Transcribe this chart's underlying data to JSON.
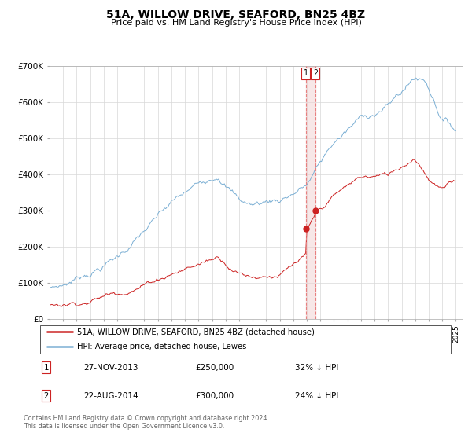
{
  "title": "51A, WILLOW DRIVE, SEAFORD, BN25 4BZ",
  "subtitle": "Price paid vs. HM Land Registry's House Price Index (HPI)",
  "ylim": [
    0,
    700000
  ],
  "yticks": [
    0,
    100000,
    200000,
    300000,
    400000,
    500000,
    600000,
    700000
  ],
  "ytick_labels": [
    "£0",
    "£100K",
    "£200K",
    "£300K",
    "£400K",
    "£500K",
    "£600K",
    "£700K"
  ],
  "xlim_start": 1995.0,
  "xlim_end": 2025.5,
  "sale1_date": 2013.917,
  "sale1_price": 250000,
  "sale1_label": "27-NOV-2013",
  "sale1_amount": "£250,000",
  "sale1_pct": "32% ↓ HPI",
  "sale2_date": 2014.625,
  "sale2_price": 300000,
  "sale2_label": "22-AUG-2014",
  "sale2_amount": "£300,000",
  "sale2_pct": "24% ↓ HPI",
  "hpi_color": "#7bafd4",
  "price_color": "#cc2222",
  "vline_color": "#e88080",
  "legend_label_price": "51A, WILLOW DRIVE, SEAFORD, BN25 4BZ (detached house)",
  "legend_label_hpi": "HPI: Average price, detached house, Lewes",
  "footer1": "Contains HM Land Registry data © Crown copyright and database right 2024.",
  "footer2": "This data is licensed under the Open Government Licence v3.0."
}
